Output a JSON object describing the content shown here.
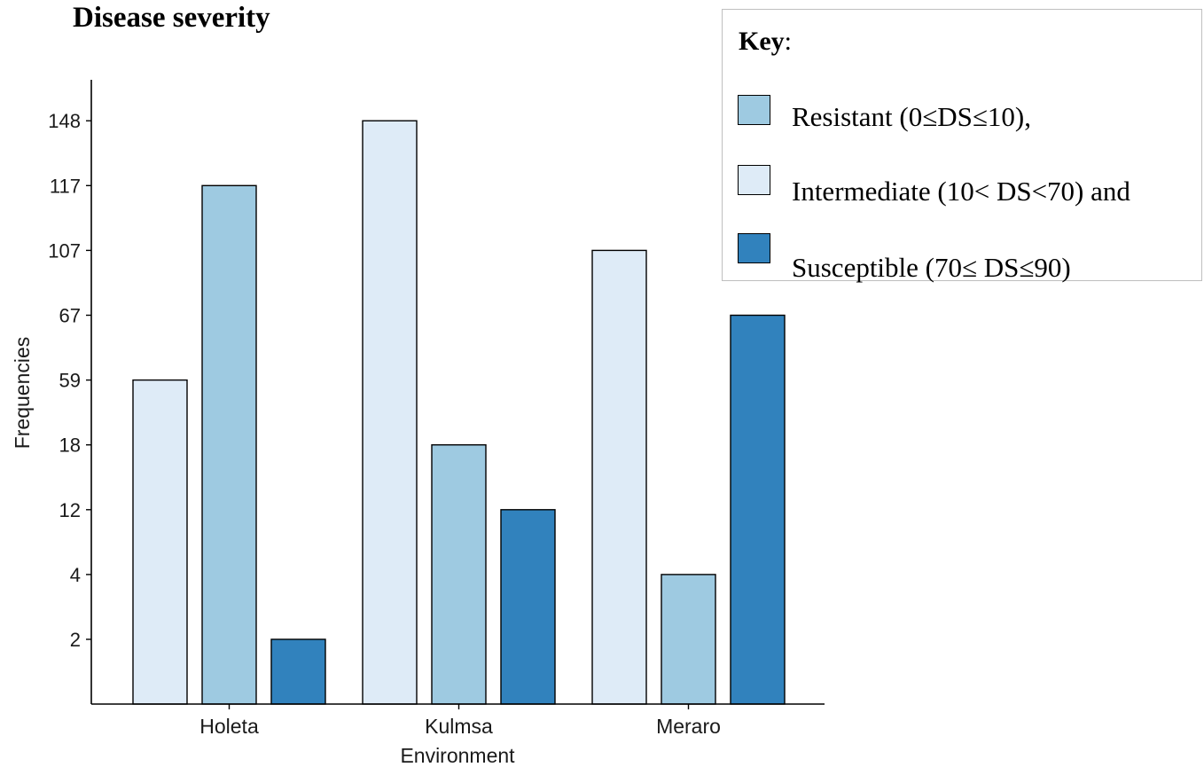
{
  "chart_data": {
    "type": "bar",
    "title": "Disease severity",
    "xlabel": "Environment",
    "ylabel": "Frequencies",
    "categories": [
      "Holeta",
      "Kulmsa",
      "Meraro"
    ],
    "y_ticks": [
      "2",
      "4",
      "12",
      "18",
      "59",
      "67",
      "107",
      "117",
      "148"
    ],
    "series": [
      {
        "name": "Intermediate",
        "color": "#deebf7",
        "values": [
          59,
          148,
          107
        ]
      },
      {
        "name": "Resistant",
        "color": "#9ecae1",
        "values": [
          117,
          18,
          4
        ]
      },
      {
        "name": "Susceptible",
        "color": "#3182bd",
        "values": [
          2,
          12,
          67
        ]
      }
    ],
    "legend": {
      "heading": "Key",
      "heading_suffix": ":",
      "items": [
        {
          "label": "Resistant (0≤DS≤10),",
          "color": "#9ecae1"
        },
        {
          "label": "Intermediate (10< DS<70) and",
          "color": "#deebf7"
        },
        {
          "label": "Susceptible (70≤ DS≤90)",
          "color": "#3182bd"
        }
      ]
    }
  }
}
